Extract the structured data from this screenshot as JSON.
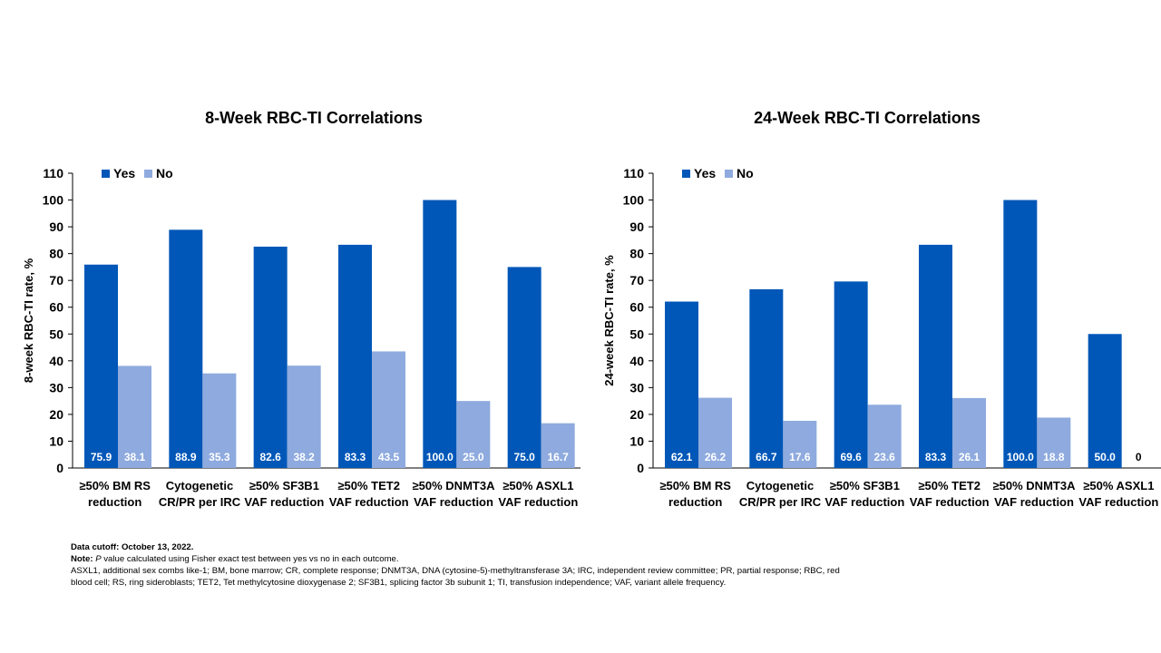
{
  "colors": {
    "yes": "#0057b8",
    "no": "#8eaade",
    "axis": "#000000",
    "bar_label": "#ffffff"
  },
  "chart_data": [
    {
      "type": "bar",
      "title": "8-Week RBC-TI Correlations",
      "ylabel": "8-week RBC-TI rate, %",
      "xlabel": "",
      "ylim": [
        0,
        110
      ],
      "yticks": [
        0,
        10,
        20,
        30,
        40,
        50,
        60,
        70,
        80,
        90,
        100,
        110
      ],
      "legend_position": "top-left",
      "categories": [
        [
          "≥50% BM RS",
          "reduction"
        ],
        [
          "Cytogenetic",
          "CR/PR per IRC"
        ],
        [
          "≥50% SF3B1",
          "VAF reduction"
        ],
        [
          "≥50% TET2",
          "VAF reduction"
        ],
        [
          "≥50% DNMT3A",
          "VAF reduction"
        ],
        [
          "≥50% ASXL1",
          "VAF reduction"
        ]
      ],
      "series": [
        {
          "name": "Yes",
          "values": [
            75.9,
            88.9,
            82.6,
            83.3,
            100.0,
            75.0
          ],
          "labels": [
            "75.9",
            "88.9",
            "82.6",
            "83.3",
            "100.0",
            "75.0"
          ]
        },
        {
          "name": "No",
          "values": [
            38.1,
            35.3,
            38.2,
            43.5,
            25.0,
            16.7
          ],
          "labels": [
            "38.1",
            "35.3",
            "38.2",
            "43.5",
            "25.0",
            "16.7"
          ]
        }
      ]
    },
    {
      "type": "bar",
      "title": "24-Week RBC-TI Correlations",
      "ylabel": "24-week RBC-TI rate, %",
      "xlabel": "",
      "ylim": [
        0,
        110
      ],
      "yticks": [
        0,
        10,
        20,
        30,
        40,
        50,
        60,
        70,
        80,
        90,
        100,
        110
      ],
      "legend_position": "top-left",
      "categories": [
        [
          "≥50% BM RS",
          "reduction"
        ],
        [
          "Cytogenetic",
          "CR/PR per IRC"
        ],
        [
          "≥50% SF3B1",
          "VAF reduction"
        ],
        [
          "≥50% TET2",
          "VAF reduction"
        ],
        [
          "≥50% DNMT3A",
          "VAF reduction"
        ],
        [
          "≥50% ASXL1",
          "VAF reduction"
        ]
      ],
      "series": [
        {
          "name": "Yes",
          "values": [
            62.1,
            66.7,
            69.6,
            83.3,
            100.0,
            50.0
          ],
          "labels": [
            "62.1",
            "66.7",
            "69.6",
            "83.3",
            "100.0",
            "50.0"
          ]
        },
        {
          "name": "No",
          "values": [
            26.2,
            17.6,
            23.6,
            26.1,
            18.8,
            0
          ],
          "labels": [
            "26.2",
            "17.6",
            "23.6",
            "26.1",
            "18.8",
            "0"
          ]
        }
      ]
    }
  ],
  "footnote": {
    "cutoff": "Data cutoff: October 13, 2022.",
    "note_label": "Note:",
    "note_p": "P",
    "note_text": " value calculated using Fisher exact test between yes vs no in each outcome.",
    "abbreviations": "ASXL1, additional sex combs like-1; BM, bone marrow; CR, complete response; DNMT3A, DNA (cytosine-5)-methyltransferase 3A; IRC, independent review committee; PR, partial response; RBC, red blood cell; RS, ring sideroblasts; TET2, Tet methylcytosine dioxygenase 2; SF3B1, splicing factor 3b subunit 1; TI, transfusion independence; VAF, variant allele frequency."
  }
}
